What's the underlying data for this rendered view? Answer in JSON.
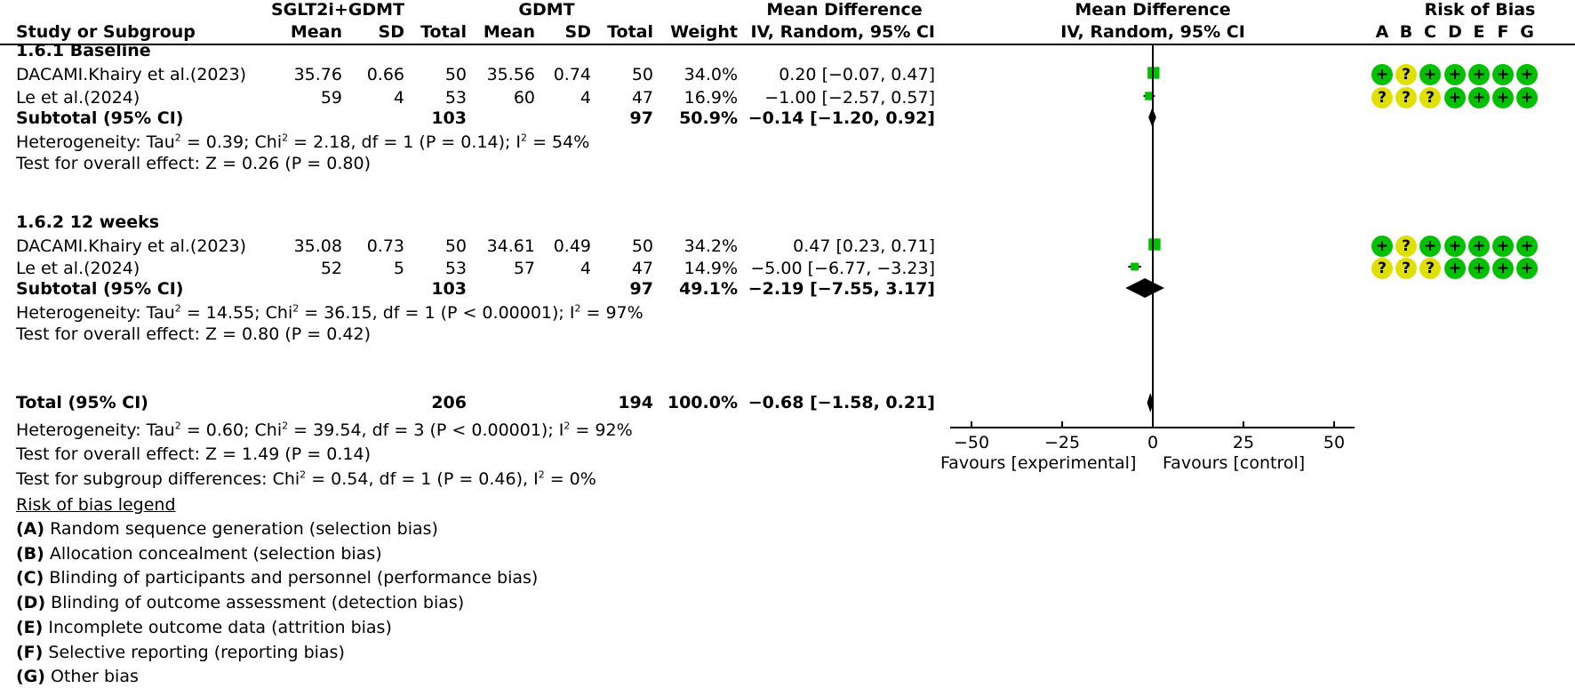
{
  "header": {
    "group1": "SGLT2i+GDMT",
    "group2": "GDMT",
    "study_col": "Study or Subgroup",
    "mean": "Mean",
    "sd": "SD",
    "total": "Total",
    "weight": "Weight",
    "md_title": "Mean Difference",
    "md_method": "IV, Random, 95% CI",
    "plot_title": "Mean Difference",
    "plot_method": "IV, Random, 95% CI",
    "rob_title": "Risk of Bias",
    "rob_letters": [
      "A",
      "B",
      "C",
      "D",
      "E",
      "F",
      "G"
    ]
  },
  "subgroups": [
    {
      "title": "1.6.1 Baseline",
      "studies": [
        {
          "name": "DACAMI.Khairy et al.(2023)",
          "m1": "35.76",
          "sd1": "0.66",
          "n1": "50",
          "m2": "35.56",
          "sd2": "0.74",
          "n2": "50",
          "weight": "34.0%",
          "ci": "0.20 [−0.07, 0.47]",
          "md": 0.2,
          "lo": -0.07,
          "hi": 0.47,
          "rob": [
            "+",
            "?",
            "+",
            "+",
            "+",
            "+",
            "+"
          ]
        },
        {
          "name": "Le et al.(2024)",
          "m1": "59",
          "sd1": "4",
          "n1": "53",
          "m2": "60",
          "sd2": "4",
          "n2": "47",
          "weight": "16.9%",
          "ci": "−1.00 [−2.57, 0.57]",
          "md": -1.0,
          "lo": -2.57,
          "hi": 0.57,
          "rob": [
            "?",
            "?",
            "?",
            "+",
            "+",
            "+",
            "+"
          ]
        }
      ],
      "subtotal": {
        "label": "Subtotal (95% CI)",
        "n1": "103",
        "n2": "97",
        "weight": "50.9%",
        "ci": "−0.14 [−1.20, 0.92]",
        "md": -0.14,
        "lo": -1.2,
        "hi": 0.92
      },
      "heterogeneity": {
        "prefix": "Heterogeneity: Tau",
        "tau": " = 0.39; Chi",
        "chi": " = 2.18, df = 1 (P = 0.14); I",
        "i2": " = 54%"
      },
      "overall": "Test for overall effect: Z = 0.26 (P = 0.80)"
    },
    {
      "title": "1.6.2 12 weeks",
      "studies": [
        {
          "name": "DACAMI.Khairy et al.(2023)",
          "m1": "35.08",
          "sd1": "0.73",
          "n1": "50",
          "m2": "34.61",
          "sd2": "0.49",
          "n2": "50",
          "weight": "34.2%",
          "ci": "0.47 [0.23, 0.71]",
          "md": 0.47,
          "lo": 0.23,
          "hi": 0.71,
          "rob": [
            "+",
            "?",
            "+",
            "+",
            "+",
            "+",
            "+"
          ]
        },
        {
          "name": "Le et al.(2024)",
          "m1": "52",
          "sd1": "5",
          "n1": "53",
          "m2": "57",
          "sd2": "4",
          "n2": "47",
          "weight": "14.9%",
          "ci": "−5.00 [−6.77, −3.23]",
          "md": -5.0,
          "lo": -6.77,
          "hi": -3.23,
          "rob": [
            "?",
            "?",
            "?",
            "+",
            "+",
            "+",
            "+"
          ]
        }
      ],
      "subtotal": {
        "label": "Subtotal (95% CI)",
        "n1": "103",
        "n2": "97",
        "weight": "49.1%",
        "ci": "−2.19 [−7.55, 3.17]",
        "md": -2.19,
        "lo": -7.55,
        "hi": 3.17
      },
      "heterogeneity": {
        "prefix": "Heterogeneity: Tau",
        "tau": " = 14.55; Chi",
        "chi": " = 36.15, df = 1 (P < 0.00001); I",
        "i2": " = 97%"
      },
      "overall": "Test for overall effect: Z = 0.80 (P = 0.42)"
    }
  ],
  "total": {
    "label": "Total (95% CI)",
    "n1": "206",
    "n2": "194",
    "weight": "100.0%",
    "ci": "−0.68 [−1.58, 0.21]",
    "heterogeneity": {
      "prefix": "Heterogeneity: Tau",
      "tau": " = 0.60; Chi",
      "chi": " = 39.54, df = 3 (P < 0.00001); I",
      "i2": " = 92%"
    },
    "overall": "Test for overall effect: Z = 1.49 (P = 0.14)",
    "subgroup_diff": {
      "prefix": "Test for subgroup differences: Chi",
      "chi": " = 0.54, df = 1 (P = 0.46), I",
      "i2": " = 0%"
    }
  },
  "axis": {
    "ticks": [
      "−50",
      "−25",
      "0",
      "25",
      "50"
    ],
    "favours_left": "Favours [experimental]",
    "favours_right": "Favours [control]"
  },
  "legend": {
    "title": "Risk of bias legend",
    "items": [
      {
        "key": "(A)",
        "text": " Random sequence generation (selection bias)"
      },
      {
        "key": "(B)",
        "text": " Allocation concealment (selection bias)"
      },
      {
        "key": "(C)",
        "text": " Blinding of participants and personnel (performance bias)"
      },
      {
        "key": "(D)",
        "text": " Blinding of outcome assessment (detection bias)"
      },
      {
        "key": "(E)",
        "text": " Incomplete outcome data (attrition bias)"
      },
      {
        "key": "(F)",
        "text": " Selective reporting (reporting bias)"
      },
      {
        "key": "(G)",
        "text": " Other bias"
      }
    ]
  },
  "colors": {
    "low_risk": "#00c000",
    "unclear_risk": "#e0e000",
    "study_marker": "#00c000",
    "diamond": "#000000"
  },
  "chart_data": {
    "type": "forest",
    "title": "Mean Difference, IV, Random, 95% CI",
    "xlabel": "Favours [experimental]  |  Favours [control]",
    "xlim": [
      -50,
      50
    ],
    "xticks": [
      -50,
      -25,
      0,
      25,
      50
    ],
    "subgroups": [
      {
        "name": "1.6.1 Baseline",
        "studies": [
          {
            "study": "DACAMI.Khairy et al.(2023)",
            "md": 0.2,
            "ci": [
              -0.07,
              0.47
            ],
            "weight": 34.0
          },
          {
            "study": "Le et al.(2024)",
            "md": -1.0,
            "ci": [
              -2.57,
              0.57
            ],
            "weight": 16.9
          }
        ],
        "subtotal": {
          "md": -0.14,
          "ci": [
            -1.2,
            0.92
          ],
          "weight": 50.9
        }
      },
      {
        "name": "1.6.2 12 weeks",
        "studies": [
          {
            "study": "DACAMI.Khairy et al.(2023)",
            "md": 0.47,
            "ci": [
              0.23,
              0.71
            ],
            "weight": 34.2
          },
          {
            "study": "Le et al.(2024)",
            "md": -5.0,
            "ci": [
              -6.77,
              -3.23
            ],
            "weight": 14.9
          }
        ],
        "subtotal": {
          "md": -2.19,
          "ci": [
            -7.55,
            3.17
          ],
          "weight": 49.1
        }
      }
    ],
    "total": {
      "md": -0.68,
      "ci": [
        -1.58,
        0.21
      ],
      "weight": 100.0
    }
  }
}
